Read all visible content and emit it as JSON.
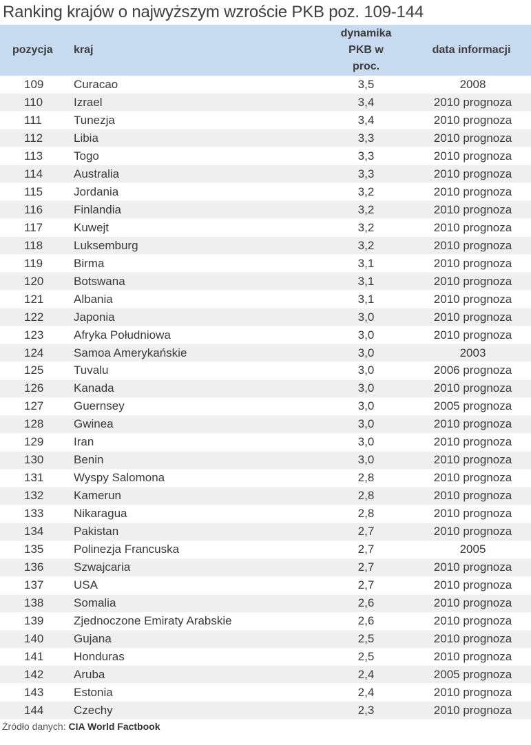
{
  "title": "Ranking krajów o najwyższym wzroście PKB poz. 109-144",
  "table": {
    "headers": {
      "pozycja": "pozycja",
      "kraj": "kraj",
      "dynamika": "dynamika PKB w proc.",
      "dynamika_lines": [
        "dynamika",
        "PKB w",
        "proc."
      ],
      "data": "data informacji"
    },
    "rows": [
      {
        "pozycja": "109",
        "kraj": "Curacao",
        "dynamika": "3,5",
        "data": "2008"
      },
      {
        "pozycja": "110",
        "kraj": "Izrael",
        "dynamika": "3,4",
        "data": "2010 prognoza"
      },
      {
        "pozycja": "111",
        "kraj": "Tunezja",
        "dynamika": "3,4",
        "data": "2010 prognoza"
      },
      {
        "pozycja": "112",
        "kraj": "Libia",
        "dynamika": "3,3",
        "data": "2010 prognoza"
      },
      {
        "pozycja": "113",
        "kraj": "Togo",
        "dynamika": "3,3",
        "data": "2010 prognoza"
      },
      {
        "pozycja": "114",
        "kraj": "Australia",
        "dynamika": "3,3",
        "data": "2010 prognoza"
      },
      {
        "pozycja": "115",
        "kraj": "Jordania",
        "dynamika": "3,2",
        "data": "2010 prognoza"
      },
      {
        "pozycja": "116",
        "kraj": "Finlandia",
        "dynamika": "3,2",
        "data": "2010 prognoza"
      },
      {
        "pozycja": "117",
        "kraj": "Kuwejt",
        "dynamika": "3,2",
        "data": "2010 prognoza"
      },
      {
        "pozycja": "118",
        "kraj": "Luksemburg",
        "dynamika": "3,2",
        "data": "2010 prognoza"
      },
      {
        "pozycja": "119",
        "kraj": "Birma",
        "dynamika": "3,1",
        "data": "2010 prognoza"
      },
      {
        "pozycja": "120",
        "kraj": "Botswana",
        "dynamika": "3,1",
        "data": "2010 prognoza"
      },
      {
        "pozycja": "121",
        "kraj": "Albania",
        "dynamika": "3,1",
        "data": "2010 prognoza"
      },
      {
        "pozycja": "122",
        "kraj": "Japonia",
        "dynamika": "3,0",
        "data": "2010 prognoza"
      },
      {
        "pozycja": "123",
        "kraj": "Afryka Południowa",
        "dynamika": "3,0",
        "data": "2010 prognoza"
      },
      {
        "pozycja": "124",
        "kraj": "Samoa Amerykańskie",
        "dynamika": "3,0",
        "data": "2003"
      },
      {
        "pozycja": "125",
        "kraj": "Tuvalu",
        "dynamika": "3,0",
        "data": "2006 prognoza"
      },
      {
        "pozycja": "126",
        "kraj": "Kanada",
        "dynamika": "3,0",
        "data": "2010 prognoza"
      },
      {
        "pozycja": "127",
        "kraj": "Guernsey",
        "dynamika": "3,0",
        "data": "2005 prognoza"
      },
      {
        "pozycja": "128",
        "kraj": "Gwinea",
        "dynamika": "3,0",
        "data": "2010 prognoza"
      },
      {
        "pozycja": "129",
        "kraj": "Iran",
        "dynamika": "3,0",
        "data": "2010 prognoza"
      },
      {
        "pozycja": "130",
        "kraj": "Benin",
        "dynamika": "3,0",
        "data": "2010 prognoza"
      },
      {
        "pozycja": "131",
        "kraj": "Wyspy Salomona",
        "dynamika": "2,8",
        "data": "2010 prognoza"
      },
      {
        "pozycja": "132",
        "kraj": "Kamerun",
        "dynamika": "2,8",
        "data": "2010 prognoza"
      },
      {
        "pozycja": "133",
        "kraj": "Nikaragua",
        "dynamika": "2,8",
        "data": "2010 prognoza"
      },
      {
        "pozycja": "134",
        "kraj": "Pakistan",
        "dynamika": "2,7",
        "data": "2010 prognoza"
      },
      {
        "pozycja": "135",
        "kraj": "Polinezja Francuska",
        "dynamika": "2,7",
        "data": "2005"
      },
      {
        "pozycja": "136",
        "kraj": "Szwajcaria",
        "dynamika": "2,7",
        "data": "2010 prognoza"
      },
      {
        "pozycja": "137",
        "kraj": "USA",
        "dynamika": "2,7",
        "data": "2010 prognoza"
      },
      {
        "pozycja": "138",
        "kraj": "Somalia",
        "dynamika": "2,6",
        "data": "2010 prognoza"
      },
      {
        "pozycja": "139",
        "kraj": "Zjednoczone Emiraty Arabskie",
        "dynamika": "2,6",
        "data": "2010 prognoza"
      },
      {
        "pozycja": "140",
        "kraj": "Gujana",
        "dynamika": "2,5",
        "data": "2010 prognoza"
      },
      {
        "pozycja": "141",
        "kraj": "Honduras",
        "dynamika": "2,5",
        "data": "2010 prognoza"
      },
      {
        "pozycja": "142",
        "kraj": "Aruba",
        "dynamika": "2,4",
        "data": "2005 prognoza"
      },
      {
        "pozycja": "143",
        "kraj": "Estonia",
        "dynamika": "2,4",
        "data": "2010 prognoza"
      },
      {
        "pozycja": "144",
        "kraj": "Czechy",
        "dynamika": "2,3",
        "data": "2010 prognoza"
      }
    ]
  },
  "source": {
    "label": "Źródło danych:",
    "value": "CIA World Factbook"
  },
  "colors": {
    "header_bg": "#c6daf0",
    "stripe_bg": "#efefef"
  }
}
